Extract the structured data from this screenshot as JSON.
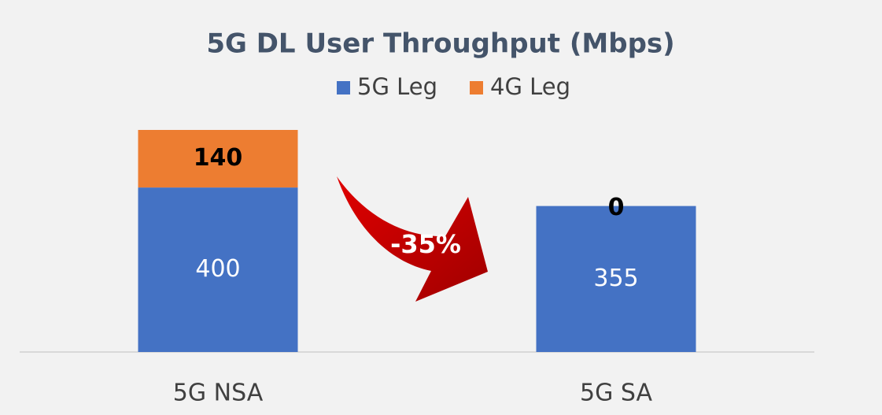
{
  "chart_data": {
    "type": "stacked-bar",
    "title": "5G DL User Throughput (Mbps)",
    "categories": [
      "5G NSA",
      "5G SA"
    ],
    "series": [
      {
        "name": "5G Leg",
        "color": "#4472c4",
        "values": [
          400,
          355
        ]
      },
      {
        "name": "4G Leg",
        "color": "#ed7d31",
        "values": [
          140,
          0
        ]
      }
    ],
    "annotation": "-35%"
  }
}
